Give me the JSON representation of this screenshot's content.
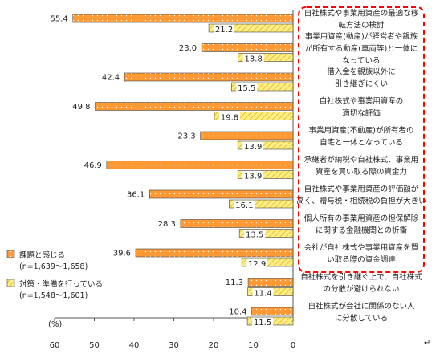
{
  "chart_data": {
    "type": "bar",
    "orientation": "horizontal-reversed",
    "unit_label": "(%)",
    "xlim": [
      0,
      60
    ],
    "x_ticks": [
      "60",
      "50",
      "40",
      "30",
      "20",
      "10",
      "0"
    ],
    "colors": {
      "series_1": "#ff9933",
      "series_2": "#ffee88",
      "highlight_border": "#ff0000"
    },
    "series": [
      {
        "name": "課題と感じる",
        "sample": "(n=1,639〜1,658)",
        "values": [
          55.4,
          23.0,
          42.4,
          49.8,
          23.3,
          46.9,
          36.1,
          28.3,
          39.6,
          11.3,
          10.4
        ]
      },
      {
        "name": "対策・準備を行っている",
        "sample": "(n=1,548〜1,601)",
        "values": [
          21.2,
          13.8,
          15.5,
          19.8,
          13.9,
          13.9,
          16.1,
          13.5,
          12.9,
          11.4,
          11.5
        ]
      }
    ],
    "value_labels_1": [
      "55.4",
      "23.0",
      "42.4",
      "49.8",
      "23.3",
      "46.9",
      "36.1",
      "28.3",
      "39.6",
      "11.3",
      "10.4"
    ],
    "value_labels_2": [
      "21.2",
      "13.8",
      "15.5",
      "19.8",
      "13.9",
      "13.9",
      "16.1",
      "13.5",
      "12.9",
      "11.4",
      "11.5"
    ],
    "categories": [
      [
        "自社株式や事業用資産の最適な移",
        "転方法の検討"
      ],
      [
        "事業用資産(動産)が経営者や親族",
        "が所有する動産(車両等)と一体に",
        "なっている"
      ],
      [
        "借入金を親族以外に",
        "引き継ぎにくい"
      ],
      [
        "自社株式や事業用資産の",
        "適切な評価"
      ],
      [
        "事業用資産(不動産)が所有者の",
        "自宅と一体となっている"
      ],
      [
        "承継者が納税や自社株式、事業用",
        "資産を買い取る際の資金力"
      ],
      [
        "自社株式や事業用資産の評価額が",
        "高く、贈与税・相続税の負担が大きい"
      ],
      [
        "個人所有の事業用資産の担保解除",
        "に関する金融機関との折衝"
      ],
      [
        "会社が自社株式や事業用資産を買",
        "い取る際の資金調達"
      ],
      [
        "自社株式を引き継ぐ上で、自社株式",
        "の分散が避けられない"
      ],
      [
        "自社株式が会社に関係のない人",
        "に分散している"
      ]
    ],
    "highlighted_rows": 9
  }
}
